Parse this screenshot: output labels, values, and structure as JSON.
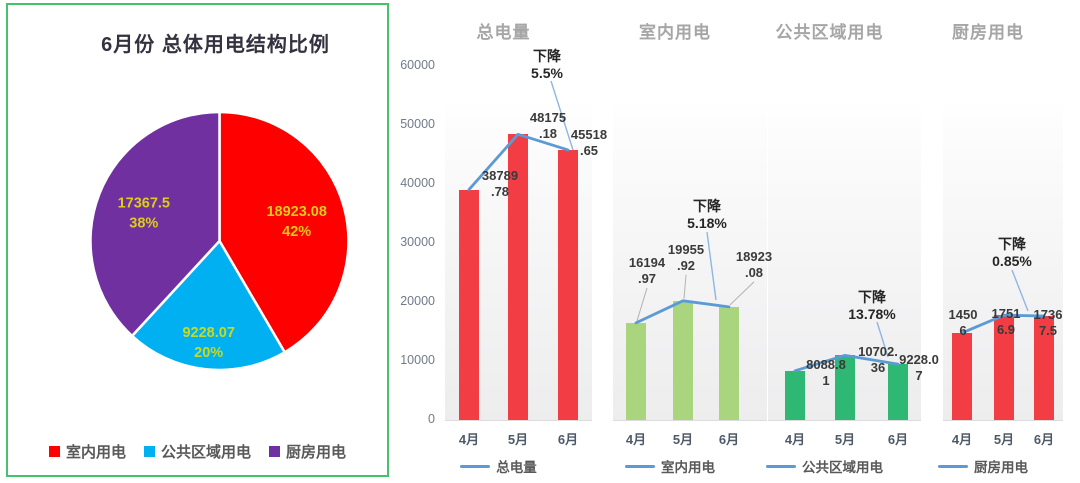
{
  "pie_panel": {
    "title": "6月份 总体用电结构比例",
    "slices": [
      {
        "name": "室内用电",
        "value": "18923.08",
        "pct": "42%",
        "color": "#fe0000",
        "label_color": "#decc18"
      },
      {
        "name": "公共区域用电",
        "value": "9228.07",
        "pct": "20%",
        "color": "#00b0f0",
        "label_color": "#c8da20"
      },
      {
        "name": "厨房用电",
        "value": "17367.5",
        "pct": "38%",
        "color": "#7030a0",
        "label_color": "#decc18"
      }
    ],
    "legend": [
      {
        "label": "室内用电",
        "color": "#fe0000"
      },
      {
        "label": "公共区域用电",
        "color": "#00b0f0"
      },
      {
        "label": "厨房用电",
        "color": "#7030a0"
      }
    ]
  },
  "charts": [
    {
      "title": "总电量",
      "legend_label": "总电量",
      "bar_color": "#f23d44",
      "months": [
        "4月",
        "5月",
        "6月"
      ],
      "values": [
        38789.78,
        48175.18,
        45518.65
      ],
      "value_labels": [
        [
          "38789",
          ".78"
        ],
        [
          "48175",
          ".18"
        ],
        [
          "45518",
          ".65"
        ]
      ],
      "annotation_lines": [
        "下降",
        "5.5%"
      ],
      "y_ticks": [
        0,
        10000,
        20000,
        30000,
        40000,
        50000,
        60000
      ]
    },
    {
      "title": "室内用电",
      "legend_label": "室内用电",
      "bar_color": "#a9d57e",
      "months": [
        "4月",
        "5月",
        "6月"
      ],
      "values": [
        16194.97,
        19955.92,
        18923.08
      ],
      "value_labels": [
        [
          "16194",
          ".97"
        ],
        [
          "19955",
          ".92"
        ],
        [
          "18923",
          ".08"
        ]
      ],
      "annotation_lines": [
        "下降",
        "5.18%"
      ],
      "y_ticks": []
    },
    {
      "title": "公共区域用电",
      "legend_label": "公共区域用电",
      "bar_color": "#2eb873",
      "months": [
        "4月",
        "5月",
        "6月"
      ],
      "values": [
        8088.81,
        10702.36,
        9228.07
      ],
      "value_labels": [
        [
          "8088.8",
          "1"
        ],
        [
          "10702.",
          "36"
        ],
        [
          "9228.0",
          "7"
        ]
      ],
      "annotation_lines": [
        "下降",
        "13.78%"
      ],
      "y_ticks": []
    },
    {
      "title": "厨房用电",
      "legend_label": "厨房用电",
      "bar_color": "#f23d44",
      "months": [
        "4月",
        "5月",
        "6月"
      ],
      "values": [
        14506,
        17516.9,
        17367.5
      ],
      "value_labels": [
        [
          "1450",
          "6"
        ],
        [
          "1751",
          "6.9"
        ],
        [
          "1736",
          "7.5"
        ]
      ],
      "annotation_lines": [
        "下降",
        "0.85%"
      ],
      "y_ticks": []
    }
  ],
  "chart_data": [
    {
      "type": "pie",
      "title": "6月份 总体用电结构比例",
      "labels": [
        "室内用电",
        "公共区域用电",
        "厨房用电"
      ],
      "values": [
        18923.08,
        9228.07,
        17367.5
      ],
      "percentages": [
        42,
        20,
        38
      ],
      "colors": [
        "#fe0000",
        "#00b0f0",
        "#7030a0"
      ],
      "legend_position": "bottom"
    },
    {
      "type": "bar",
      "subtype": "bar+line",
      "title": "总电量",
      "categories": [
        "4月",
        "5月",
        "6月"
      ],
      "values": [
        38789.78,
        48175.18,
        45518.65
      ],
      "annotation": "下降 5.5%",
      "ylim": [
        0,
        60000
      ],
      "yticks": [
        0,
        10000,
        20000,
        30000,
        40000,
        50000,
        60000
      ],
      "legend": [
        "总电量"
      ],
      "legend_position": "bottom",
      "grid": false
    },
    {
      "type": "bar",
      "subtype": "bar+line",
      "title": "室内用电",
      "categories": [
        "4月",
        "5月",
        "6月"
      ],
      "values": [
        16194.97,
        19955.92,
        18923.08
      ],
      "annotation": "下降 5.18%",
      "ylim": [
        0,
        60000
      ],
      "legend": [
        "室内用电"
      ],
      "legend_position": "bottom",
      "grid": false
    },
    {
      "type": "bar",
      "subtype": "bar+line",
      "title": "公共区域用电",
      "categories": [
        "4月",
        "5月",
        "6月"
      ],
      "values": [
        8088.81,
        10702.36,
        9228.07
      ],
      "annotation": "下降 13.78%",
      "ylim": [
        0,
        60000
      ],
      "legend": [
        "公共区域用电"
      ],
      "legend_position": "bottom",
      "grid": false
    },
    {
      "type": "bar",
      "subtype": "bar+line",
      "title": "厨房用电",
      "categories": [
        "4月",
        "5月",
        "6月"
      ],
      "values": [
        14506,
        17516.9,
        17367.5
      ],
      "annotation": "下降 0.85%",
      "ylim": [
        0,
        60000
      ],
      "legend": [
        "厨房用电"
      ],
      "legend_position": "bottom",
      "grid": false
    }
  ]
}
